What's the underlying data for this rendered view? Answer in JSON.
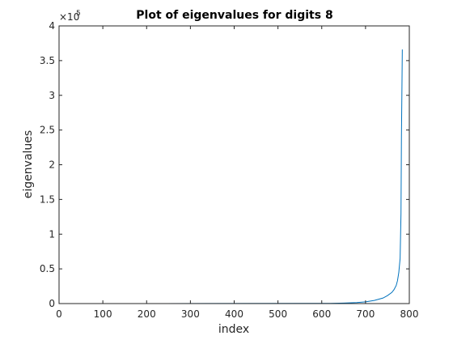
{
  "chart_data": {
    "type": "line",
    "title": "Plot of eigenvalues for digits 8",
    "xlabel": "index",
    "ylabel": "eigenvalues",
    "xlim": [
      0,
      800
    ],
    "ylim": [
      0,
      400000
    ],
    "x_ticks": [
      0,
      100,
      200,
      300,
      400,
      500,
      600,
      700,
      800
    ],
    "y_ticks": [
      0,
      50000,
      100000,
      150000,
      200000,
      250000,
      300000,
      350000,
      400000
    ],
    "y_tick_labels": [
      "0",
      "0.5",
      "1",
      "1.5",
      "2",
      "2.5",
      "3",
      "3.5",
      "4"
    ],
    "y_exponent_base": "×10",
    "y_exponent_power": "5",
    "grid": false,
    "series_color": "#0072BD",
    "series": [
      {
        "x": [
          1,
          240,
          620,
          650,
          680,
          700,
          720,
          740,
          750,
          760,
          765,
          770,
          773,
          776,
          779,
          781,
          782,
          783,
          784
        ],
        "values": [
          0,
          0,
          300,
          700,
          1500,
          2500,
          4500,
          8000,
          11500,
          16000,
          20000,
          26000,
          33000,
          45000,
          65000,
          130000,
          240000,
          300000,
          366000
        ]
      }
    ]
  }
}
